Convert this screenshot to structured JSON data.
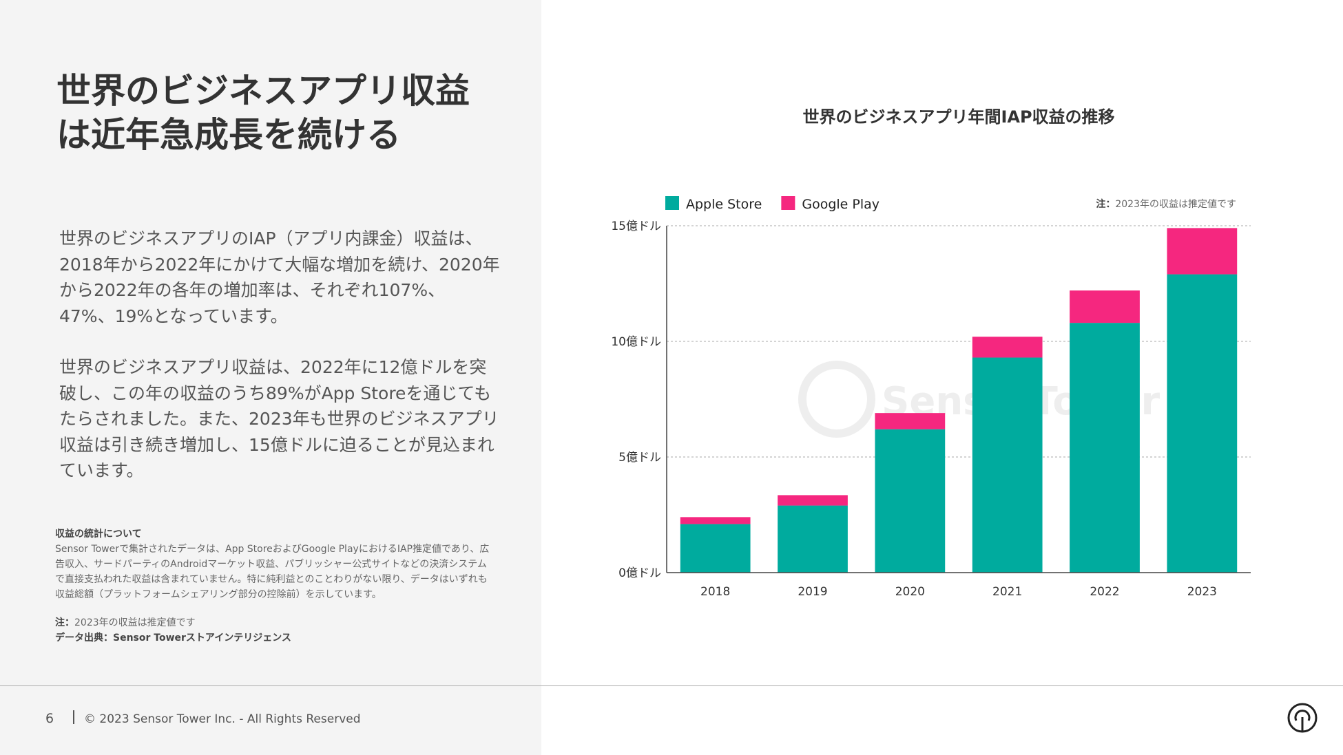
{
  "page": {
    "title_lines": [
      "世界のビジネスアプリ収益",
      "は近年急成長を続ける"
    ],
    "paragraph1": "世界のビジネスアプリのIAP（アプリ内課金）収益は、2018年から2022年にかけて大幅な増加を続け、2020年から2022年の各年の増加率は、それぞれ107%、47%、19%となっています。",
    "paragraph2": "世界のビジネスアプリ収益は、2022年に12億ドルを突破し、この年の収益のうち89%がApp Storeを通じてもたらされました。また、2023年も世界のビジネスアプリ収益は引き続き増加し、15億ドルに迫ることが見込まれています。",
    "notes": {
      "heading": "収益の統計について",
      "body": "Sensor Towerで集計されたデータは、App StoreおよびGoogle PlayにおけるIAP推定値であり、広告収入、サードパーティのAndroidマーケット収益、パブリッシャー公式サイトなどの決済システムで直接支払われた収益は含まれていません。特に純利益とのことわりがない限り、データはいずれも収益総額（プラットフォームシェアリング部分の控除前）を示しています。",
      "note_label": "注：",
      "note_text": "2023年の収益は推定値です",
      "source": "データ出典：Sensor Towerストアインテリジェンス"
    }
  },
  "footer": {
    "page_number": "6",
    "copyright": "© 2023 Sensor Tower Inc. - All Rights Reserved"
  },
  "watermark": "SensorTower",
  "chart_data": {
    "type": "bar",
    "stacked": true,
    "title": "世界のビジネスアプリ年間IAP収益の推移",
    "categories": [
      "2018",
      "2019",
      "2020",
      "2021",
      "2022",
      "2023"
    ],
    "series": [
      {
        "name": "Apple Store",
        "color": "#00ab9e",
        "values": [
          2.1,
          2.9,
          6.2,
          9.3,
          10.8,
          12.9
        ]
      },
      {
        "name": "Google Play",
        "color": "#f5277f",
        "values": [
          0.3,
          0.45,
          0.7,
          0.9,
          1.4,
          2.0
        ]
      }
    ],
    "ylim": [
      0,
      15
    ],
    "yticks": [
      0,
      5,
      10,
      15
    ],
    "ytick_labels": [
      "0億ドル",
      "5億ドル",
      "10億ドル",
      "15億ドル"
    ],
    "grid": "dashed",
    "legend": "top-left",
    "note_label": "注：",
    "note_text": "2023年の収益は推定値です",
    "colors": {
      "apple": "#00ab9e",
      "google": "#f5277f"
    }
  }
}
